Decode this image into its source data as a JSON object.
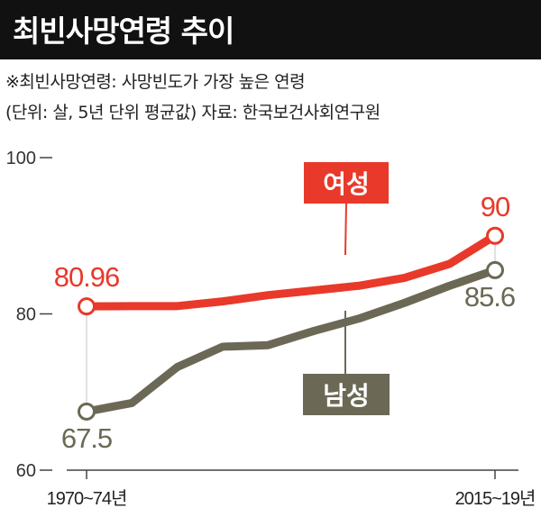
{
  "header": {
    "title": "최빈사망연령 추이",
    "note": "※최빈사망연령: 사망빈도가 가장 높은 연령",
    "unit_source": "(단위: 살, 5년 단위 평균값)  자료: 한국보건사회연구원"
  },
  "colors": {
    "female": "#e8392b",
    "male": "#6b6955",
    "band": "#d9d9d9",
    "axis": "#444444"
  },
  "chart_data": {
    "type": "line",
    "title": "최빈사망연령 추이",
    "x": [
      "1970~74년",
      "",
      "",
      "",
      "",
      "",
      "",
      "",
      "",
      "2015~19년"
    ],
    "x_tick_labels": [
      "1970~74년",
      "2015~19년"
    ],
    "ylim": [
      60,
      100
    ],
    "y_ticks": [
      60,
      80,
      100
    ],
    "grid": false,
    "series": [
      {
        "name": "여성",
        "color": "#e8392b",
        "values": [
          80.96,
          81.0,
          81.0,
          81.6,
          82.4,
          83.0,
          83.6,
          84.6,
          86.4,
          90
        ]
      },
      {
        "name": "남성",
        "color": "#6b6955",
        "values": [
          67.5,
          68.6,
          73.2,
          75.8,
          76.0,
          77.8,
          79.4,
          81.4,
          83.6,
          85.6
        ]
      }
    ],
    "data_labels": [
      {
        "series": "여성",
        "index": 0,
        "text": "80.96"
      },
      {
        "series": "여성",
        "index": 9,
        "text": "90"
      },
      {
        "series": "남성",
        "index": 0,
        "text": "67.5"
      },
      {
        "series": "남성",
        "index": 9,
        "text": "85.6"
      }
    ]
  }
}
